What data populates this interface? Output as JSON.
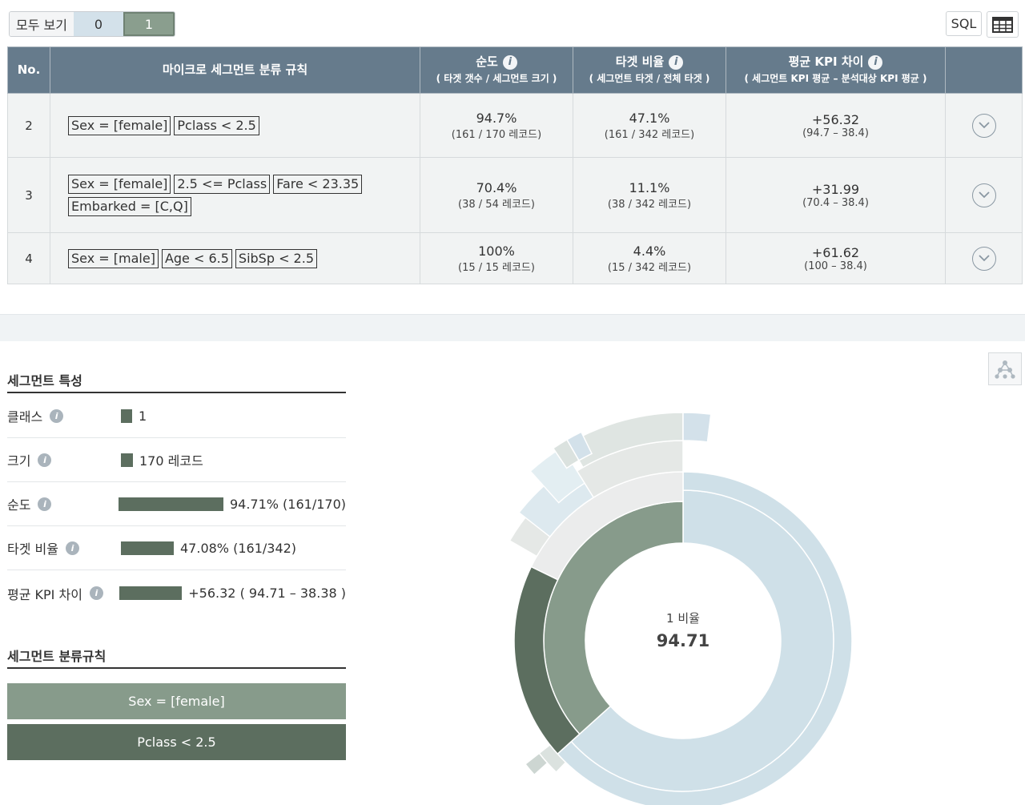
{
  "toolbar": {
    "view_all_label": "모두 보기",
    "toggle_options": [
      "0",
      "1"
    ],
    "selected_toggle": "1",
    "sql_label": "SQL",
    "table_icon": "table-grid-icon"
  },
  "table": {
    "headers": {
      "no": "No.",
      "rule": "마이크로 세그먼트 분류 규칙",
      "purity": "순도",
      "purity_sub": "( 타겟 갯수 / 세그먼트 크기 )",
      "target_ratio": "타겟 비율",
      "target_ratio_sub": "( 세그먼트 타겟 / 전체 타겟 )",
      "kpi_diff": "평균 KPI 차이",
      "kpi_diff_sub": "( 세그먼트 KPI 평균 – 분석대상 KPI 평균 )"
    },
    "rows": [
      {
        "no": "2",
        "rules": [
          "Sex = [female]",
          "Pclass < 2.5"
        ],
        "purity": "94.7%",
        "purity_frac": "(161 / 170 레코드)",
        "target": "47.1%",
        "target_frac": "(161 / 342 레코드)",
        "kpi": "+56.32",
        "kpi_frac": "(94.7 – 38.4)"
      },
      {
        "no": "3",
        "rules": [
          "Sex = [female]",
          "2.5 <= Pclass",
          "Fare < 23.35",
          "Embarked = [C,Q]"
        ],
        "purity": "70.4%",
        "purity_frac": "(38 / 54 레코드)",
        "target": "11.1%",
        "target_frac": "(38 / 342 레코드)",
        "kpi": "+31.99",
        "kpi_frac": "(70.4 – 38.4)"
      },
      {
        "no": "4",
        "rules": [
          "Sex = [male]",
          "Age < 6.5",
          "SibSp < 2.5"
        ],
        "purity": "100%",
        "purity_frac": "(15 / 15 레코드)",
        "target": "4.4%",
        "target_frac": "(15 / 342 레코드)",
        "kpi": "+61.62",
        "kpi_frac": "(100 – 38.4)"
      }
    ]
  },
  "characteristics": {
    "title": "세그먼트 특성",
    "items": [
      {
        "label": "클래스",
        "bar_fraction": 0.07,
        "value": "1"
      },
      {
        "label": "크기",
        "bar_fraction": 0.11,
        "value": "170 레코드"
      },
      {
        "label": "순도",
        "bar_fraction": 0.9471,
        "value": "94.71% (161/170)"
      },
      {
        "label": "타겟 비율",
        "bar_fraction": 0.4708,
        "value": "47.08% (161/342)"
      },
      {
        "label": "평균 KPI 차이",
        "bar_fraction": 0.5632,
        "value": "+56.32 ( 94.71 – 38.38 )"
      }
    ]
  },
  "rules_section": {
    "title": "세그먼트 분류규칙",
    "rules": [
      "Sex = [female]",
      "Pclass < 2.5"
    ],
    "colors": [
      "#879b8b",
      "#5c6e5f"
    ]
  },
  "donut": {
    "center_label": "1 비율",
    "center_value": "94.71"
  },
  "colors": {
    "header": "#667b8c",
    "sage": "#879b8b",
    "dark_sage": "#5c6e5f",
    "light_blue": "#cfe0e8"
  }
}
